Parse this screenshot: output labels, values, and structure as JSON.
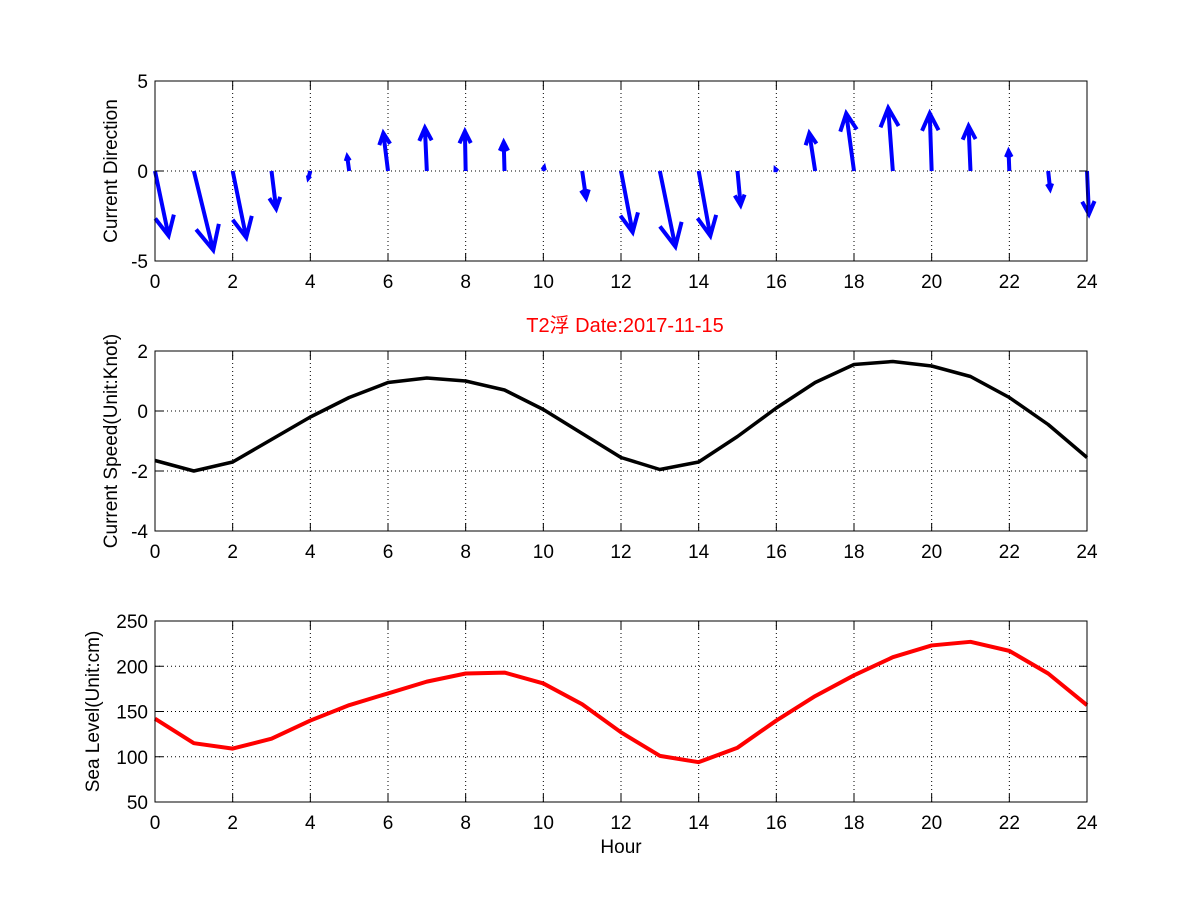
{
  "chart_data": [
    {
      "type": "quiver",
      "title": "",
      "xlabel": "",
      "ylabel": "Current Direction",
      "xlim": [
        0,
        24
      ],
      "ylim": [
        -5,
        5
      ],
      "xticks": [
        "0",
        "2",
        "4",
        "6",
        "8",
        "10",
        "12",
        "14",
        "16",
        "18",
        "20",
        "22",
        "24"
      ],
      "yticks": [
        "-5",
        "0",
        "5"
      ],
      "grid": true,
      "color": "#0000ff",
      "x": [
        0,
        1,
        2,
        3,
        4,
        5,
        6,
        7,
        8,
        9,
        10,
        11,
        12,
        13,
        14,
        15,
        16,
        17,
        18,
        19,
        20,
        21,
        22,
        23,
        24
      ],
      "u": [
        0.35,
        0.5,
        0.35,
        0.12,
        -0.05,
        -0.05,
        -0.12,
        -0.05,
        -0.02,
        -0.02,
        0.02,
        0.1,
        0.3,
        0.4,
        0.3,
        0.08,
        -0.02,
        -0.15,
        -0.2,
        -0.12,
        -0.05,
        -0.05,
        -0.02,
        0.05,
        0.05
      ],
      "v": [
        -3.6,
        -4.4,
        -3.7,
        -2.1,
        -0.4,
        0.8,
        2.1,
        2.4,
        2.2,
        1.6,
        0.2,
        -1.5,
        -3.4,
        -4.2,
        -3.6,
        -1.9,
        0.1,
        2.1,
        3.2,
        3.5,
        3.2,
        2.5,
        1.1,
        -1.0,
        -2.4
      ]
    },
    {
      "type": "line",
      "title": "T2浮    Date:2017-11-15",
      "xlabel": "",
      "ylabel": "Current Speed(Unit:Knot)",
      "xlim": [
        0,
        24
      ],
      "ylim": [
        -4,
        2
      ],
      "xticks": [
        "0",
        "2",
        "4",
        "6",
        "8",
        "10",
        "12",
        "14",
        "16",
        "18",
        "20",
        "22",
        "24"
      ],
      "yticks": [
        "-4",
        "-2",
        "0",
        "2"
      ],
      "grid": true,
      "color": "#000000",
      "x": [
        0,
        1,
        2,
        3,
        4,
        5,
        6,
        7,
        8,
        9,
        10,
        11,
        12,
        13,
        14,
        15,
        16,
        17,
        18,
        19,
        20,
        21,
        22,
        23,
        24
      ],
      "y": [
        -1.65,
        -2.0,
        -1.7,
        -0.95,
        -0.2,
        0.45,
        0.95,
        1.1,
        1.0,
        0.7,
        0.05,
        -0.75,
        -1.55,
        -1.95,
        -1.7,
        -0.85,
        0.1,
        0.95,
        1.55,
        1.65,
        1.5,
        1.15,
        0.45,
        -0.45,
        -1.55
      ]
    },
    {
      "type": "line",
      "title": "",
      "xlabel": "Hour",
      "ylabel": "Sea Level(Unit:cm)",
      "xlim": [
        0,
        24
      ],
      "ylim": [
        50,
        250
      ],
      "xticks": [
        "0",
        "2",
        "4",
        "6",
        "8",
        "10",
        "12",
        "14",
        "16",
        "18",
        "20",
        "22",
        "24"
      ],
      "yticks": [
        "50",
        "100",
        "150",
        "200",
        "250"
      ],
      "grid": true,
      "color": "#ff0000",
      "x": [
        0,
        1,
        2,
        3,
        4,
        5,
        6,
        7,
        8,
        9,
        10,
        11,
        12,
        13,
        14,
        15,
        16,
        17,
        18,
        19,
        20,
        21,
        22,
        23,
        24
      ],
      "y": [
        142,
        115,
        109,
        120,
        140,
        157,
        170,
        183,
        192,
        193,
        181,
        158,
        127,
        101,
        94,
        110,
        140,
        167,
        190,
        210,
        223,
        227,
        217,
        192,
        157
      ]
    }
  ]
}
